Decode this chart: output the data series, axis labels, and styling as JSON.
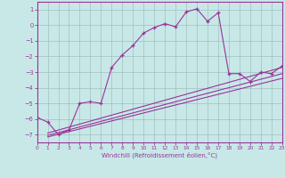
{
  "background_color": "#c8e8e8",
  "grid_color": "#a0c0c0",
  "line_color": "#993399",
  "xlabel": "Windchill (Refroidissement éolien,°C)",
  "xlim": [
    0,
    23
  ],
  "ylim": [
    -7.5,
    1.5
  ],
  "yticks": [
    1,
    0,
    -1,
    -2,
    -3,
    -4,
    -5,
    -6,
    -7
  ],
  "xticks": [
    0,
    1,
    2,
    3,
    4,
    5,
    6,
    7,
    8,
    9,
    10,
    11,
    12,
    13,
    14,
    15,
    16,
    17,
    18,
    19,
    20,
    21,
    22,
    23
  ],
  "series1": [
    [
      0,
      -5.9
    ],
    [
      1,
      -6.2
    ],
    [
      2,
      -7.0
    ],
    [
      3,
      -6.7
    ],
    [
      4,
      -5.0
    ],
    [
      5,
      -4.9
    ],
    [
      6,
      -5.0
    ],
    [
      7,
      -2.7
    ],
    [
      8,
      -1.9
    ],
    [
      9,
      -1.3
    ],
    [
      10,
      -0.5
    ],
    [
      11,
      -0.15
    ],
    [
      12,
      0.1
    ],
    [
      13,
      -0.1
    ],
    [
      14,
      0.85
    ],
    [
      15,
      1.05
    ],
    [
      16,
      0.25
    ],
    [
      17,
      0.8
    ],
    [
      18,
      -3.1
    ],
    [
      19,
      -3.1
    ],
    [
      20,
      -3.6
    ],
    [
      21,
      -3.0
    ],
    [
      22,
      -3.1
    ],
    [
      23,
      -2.6
    ]
  ],
  "series2": [
    [
      1,
      -6.9
    ],
    [
      23,
      -2.7
    ]
  ],
  "series3": [
    [
      1,
      -7.05
    ],
    [
      23,
      -3.1
    ]
  ],
  "series4": [
    [
      1,
      -7.15
    ],
    [
      23,
      -3.4
    ]
  ]
}
